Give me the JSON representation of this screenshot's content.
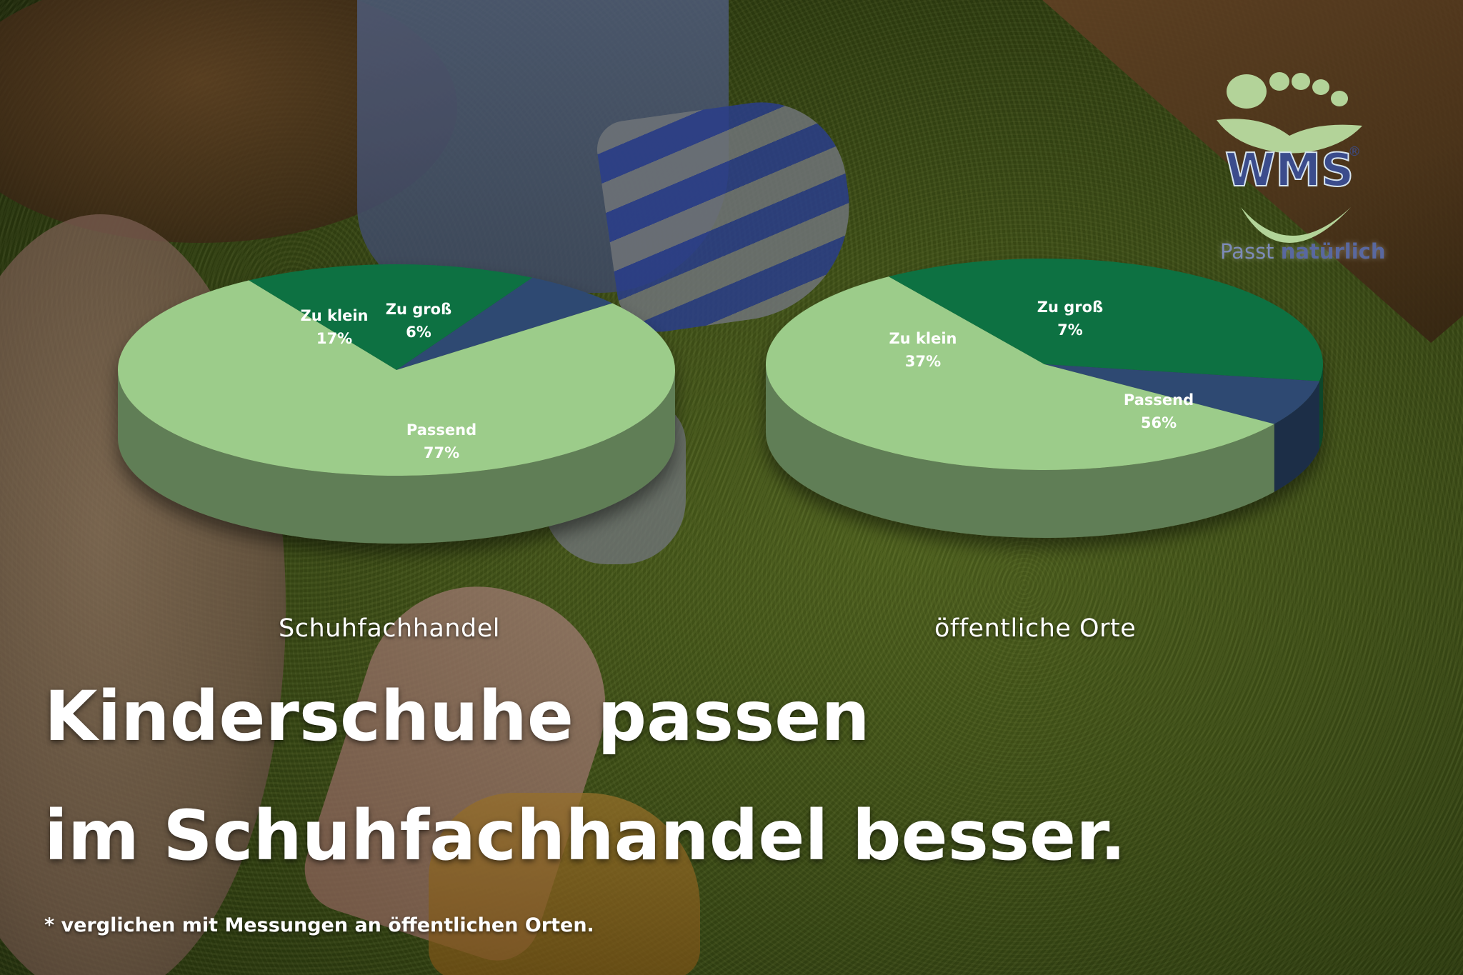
{
  "chart_data": [
    {
      "type": "pie",
      "title": "Schuhfachhandel",
      "slices": [
        {
          "label": "Passend",
          "value_label": "77%",
          "value": 77,
          "color": "#9ccc8a"
        },
        {
          "label": "Zu klein",
          "value_label": "17%",
          "value": 17,
          "color": "#0b7142"
        },
        {
          "label": "Zu groß",
          "value_label": "6%",
          "value": 6,
          "color": "#2e4a72"
        }
      ]
    },
    {
      "type": "pie",
      "title": "öffentliche Orte",
      "slices": [
        {
          "label": "Passend",
          "value_label": "56%",
          "value": 56,
          "color": "#9ccc8a"
        },
        {
          "label": "Zu klein",
          "value_label": "37%",
          "value": 37,
          "color": "#0b7142"
        },
        {
          "label": "Zu groß",
          "value_label": "7%",
          "value": 7,
          "color": "#2e4a72"
        }
      ]
    }
  ],
  "headline": {
    "line1": "Kinderschuhe passen",
    "line2": "im Schuhfachhandel besser."
  },
  "footnote": "* verglichen mit Messungen an öffentlichen Orten.",
  "logo": {
    "brand": "WMS",
    "registered": "®",
    "tagline_prefix": "Passt ",
    "tagline_emphasis": "natürlich",
    "icon": "foot-logo-icon"
  }
}
